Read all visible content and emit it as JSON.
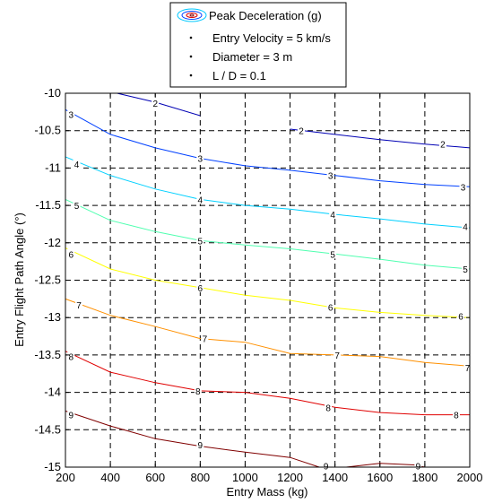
{
  "chart_data": {
    "type": "line",
    "title": "",
    "xlabel": "Entry Mass (kg)",
    "ylabel": "Entry Flight Path Angle (°)",
    "xlim": [
      200,
      2000
    ],
    "ylim": [
      -15,
      -10
    ],
    "x_ticks": [
      200,
      400,
      600,
      800,
      1000,
      1200,
      1400,
      1600,
      1800,
      2000
    ],
    "y_ticks": [
      -10,
      -10.5,
      -11,
      -11.5,
      -12,
      -12.5,
      -13,
      -13.5,
      -14,
      -14.5,
      -15
    ],
    "x_tick_labels": [
      "200",
      "400",
      "600",
      "800",
      "1000",
      "1200",
      "1400",
      "1600",
      "1800",
      "2000"
    ],
    "y_tick_labels": [
      "-10",
      "-10.5",
      "-11",
      "-11.5",
      "-12",
      "-12.5",
      "-13",
      "-13.5",
      "-14",
      "-14.5",
      "-15"
    ],
    "grid": true,
    "grid_style": "dashed",
    "legend": {
      "placement": "top-center-outside",
      "entries": [
        {
          "label": "Peak Deceleration (g)",
          "marker": "contour-ellipse"
        },
        {
          "label": "Entry Velocity = 5 km/s",
          "marker": "dot"
        },
        {
          "label": "Diameter = 3 m",
          "marker": "dot"
        },
        {
          "label": "L / D = 0.1",
          "marker": "dot"
        }
      ]
    },
    "series": [
      {
        "label": "2",
        "color": "#0000b4",
        "segments": [
          [
            [
              430,
              -10
            ],
            [
              600,
              -10.12
            ],
            [
              800,
              -10.3
            ]
          ],
          [
            [
              1200,
              -10.48
            ],
            [
              1400,
              -10.55
            ],
            [
              1600,
              -10.62
            ],
            [
              1800,
              -10.68
            ],
            [
              2000,
              -10.73
            ]
          ]
        ],
        "labels_at": [
          [
            600,
            -10.13
          ],
          [
            1250,
            -10.5
          ],
          [
            1880,
            -10.68
          ]
        ]
      },
      {
        "label": "3",
        "color": "#0040ff",
        "segments": [
          [
            [
              200,
              -10.22
            ],
            [
              400,
              -10.55
            ],
            [
              600,
              -10.73
            ],
            [
              800,
              -10.87
            ],
            [
              1000,
              -10.97
            ],
            [
              1200,
              -11.03
            ],
            [
              1400,
              -11.1
            ],
            [
              1600,
              -11.17
            ],
            [
              1800,
              -11.22
            ],
            [
              2000,
              -11.25
            ]
          ]
        ],
        "labels_at": [
          [
            225,
            -10.28
          ],
          [
            800,
            -10.87
          ],
          [
            1380,
            -11.1
          ],
          [
            1970,
            -11.25
          ]
        ]
      },
      {
        "label": "4",
        "color": "#00d0ff",
        "segments": [
          [
            [
              200,
              -10.85
            ],
            [
              400,
              -11.1
            ],
            [
              600,
              -11.28
            ],
            [
              800,
              -11.42
            ],
            [
              1000,
              -11.5
            ],
            [
              1200,
              -11.55
            ],
            [
              1400,
              -11.62
            ],
            [
              1600,
              -11.68
            ],
            [
              1800,
              -11.75
            ],
            [
              2000,
              -11.8
            ]
          ]
        ],
        "labels_at": [
          [
            250,
            -10.95
          ],
          [
            800,
            -11.42
          ],
          [
            1390,
            -11.62
          ],
          [
            1980,
            -11.78
          ]
        ]
      },
      {
        "label": "5",
        "color": "#50ffb0",
        "segments": [
          [
            [
              200,
              -11.42
            ],
            [
              400,
              -11.7
            ],
            [
              600,
              -11.85
            ],
            [
              800,
              -11.97
            ],
            [
              1000,
              -12.03
            ],
            [
              1200,
              -12.08
            ],
            [
              1400,
              -12.15
            ],
            [
              1600,
              -12.22
            ],
            [
              1800,
              -12.3
            ],
            [
              2000,
              -12.35
            ]
          ]
        ],
        "labels_at": [
          [
            250,
            -11.5
          ],
          [
            800,
            -11.97
          ],
          [
            1390,
            -12.15
          ],
          [
            1980,
            -12.35
          ]
        ]
      },
      {
        "label": "6",
        "color": "#ffff00",
        "segments": [
          [
            [
              200,
              -12.07
            ],
            [
              400,
              -12.35
            ],
            [
              600,
              -12.5
            ],
            [
              800,
              -12.6
            ],
            [
              1000,
              -12.7
            ],
            [
              1200,
              -12.77
            ],
            [
              1400,
              -12.87
            ],
            [
              1600,
              -12.93
            ],
            [
              1800,
              -12.97
            ],
            [
              2000,
              -13.0
            ]
          ]
        ],
        "labels_at": [
          [
            225,
            -12.15
          ],
          [
            800,
            -12.6
          ],
          [
            1380,
            -12.86
          ],
          [
            1960,
            -12.98
          ]
        ]
      },
      {
        "label": "7",
        "color": "#ff9000",
        "segments": [
          [
            [
              200,
              -12.75
            ],
            [
              400,
              -12.97
            ],
            [
              600,
              -13.12
            ],
            [
              800,
              -13.28
            ],
            [
              1000,
              -13.33
            ],
            [
              1200,
              -13.48
            ],
            [
              1400,
              -13.5
            ],
            [
              1600,
              -13.52
            ],
            [
              1800,
              -13.6
            ],
            [
              2000,
              -13.65
            ]
          ]
        ],
        "labels_at": [
          [
            260,
            -12.83
          ],
          [
            820,
            -13.28
          ],
          [
            1410,
            -13.5
          ],
          [
            1990,
            -13.67
          ]
        ]
      },
      {
        "label": "8",
        "color": "#e00000",
        "segments": [
          [
            [
              200,
              -13.45
            ],
            [
              400,
              -13.73
            ],
            [
              600,
              -13.87
            ],
            [
              800,
              -13.98
            ],
            [
              1000,
              -14.0
            ],
            [
              1200,
              -14.08
            ],
            [
              1400,
              -14.2
            ],
            [
              1600,
              -14.27
            ],
            [
              1800,
              -14.3
            ],
            [
              2000,
              -14.3
            ]
          ]
        ],
        "labels_at": [
          [
            225,
            -13.52
          ],
          [
            790,
            -13.98
          ],
          [
            1370,
            -14.2
          ],
          [
            1940,
            -14.3
          ]
        ]
      },
      {
        "label": "9",
        "color": "#800000",
        "segments": [
          [
            [
              200,
              -14.25
            ],
            [
              400,
              -14.45
            ],
            [
              600,
              -14.62
            ],
            [
              800,
              -14.72
            ],
            [
              1000,
              -14.8
            ],
            [
              1200,
              -14.87
            ],
            [
              1330,
              -15
            ]
          ],
          [
            [
              1450,
              -15
            ],
            [
              1600,
              -14.95
            ],
            [
              1750,
              -14.97
            ],
            [
              1800,
              -15
            ]
          ]
        ],
        "labels_at": [
          [
            225,
            -14.3
          ],
          [
            800,
            -14.7
          ],
          [
            1360,
            -14.98
          ],
          [
            1770,
            -14.98
          ]
        ]
      }
    ]
  }
}
